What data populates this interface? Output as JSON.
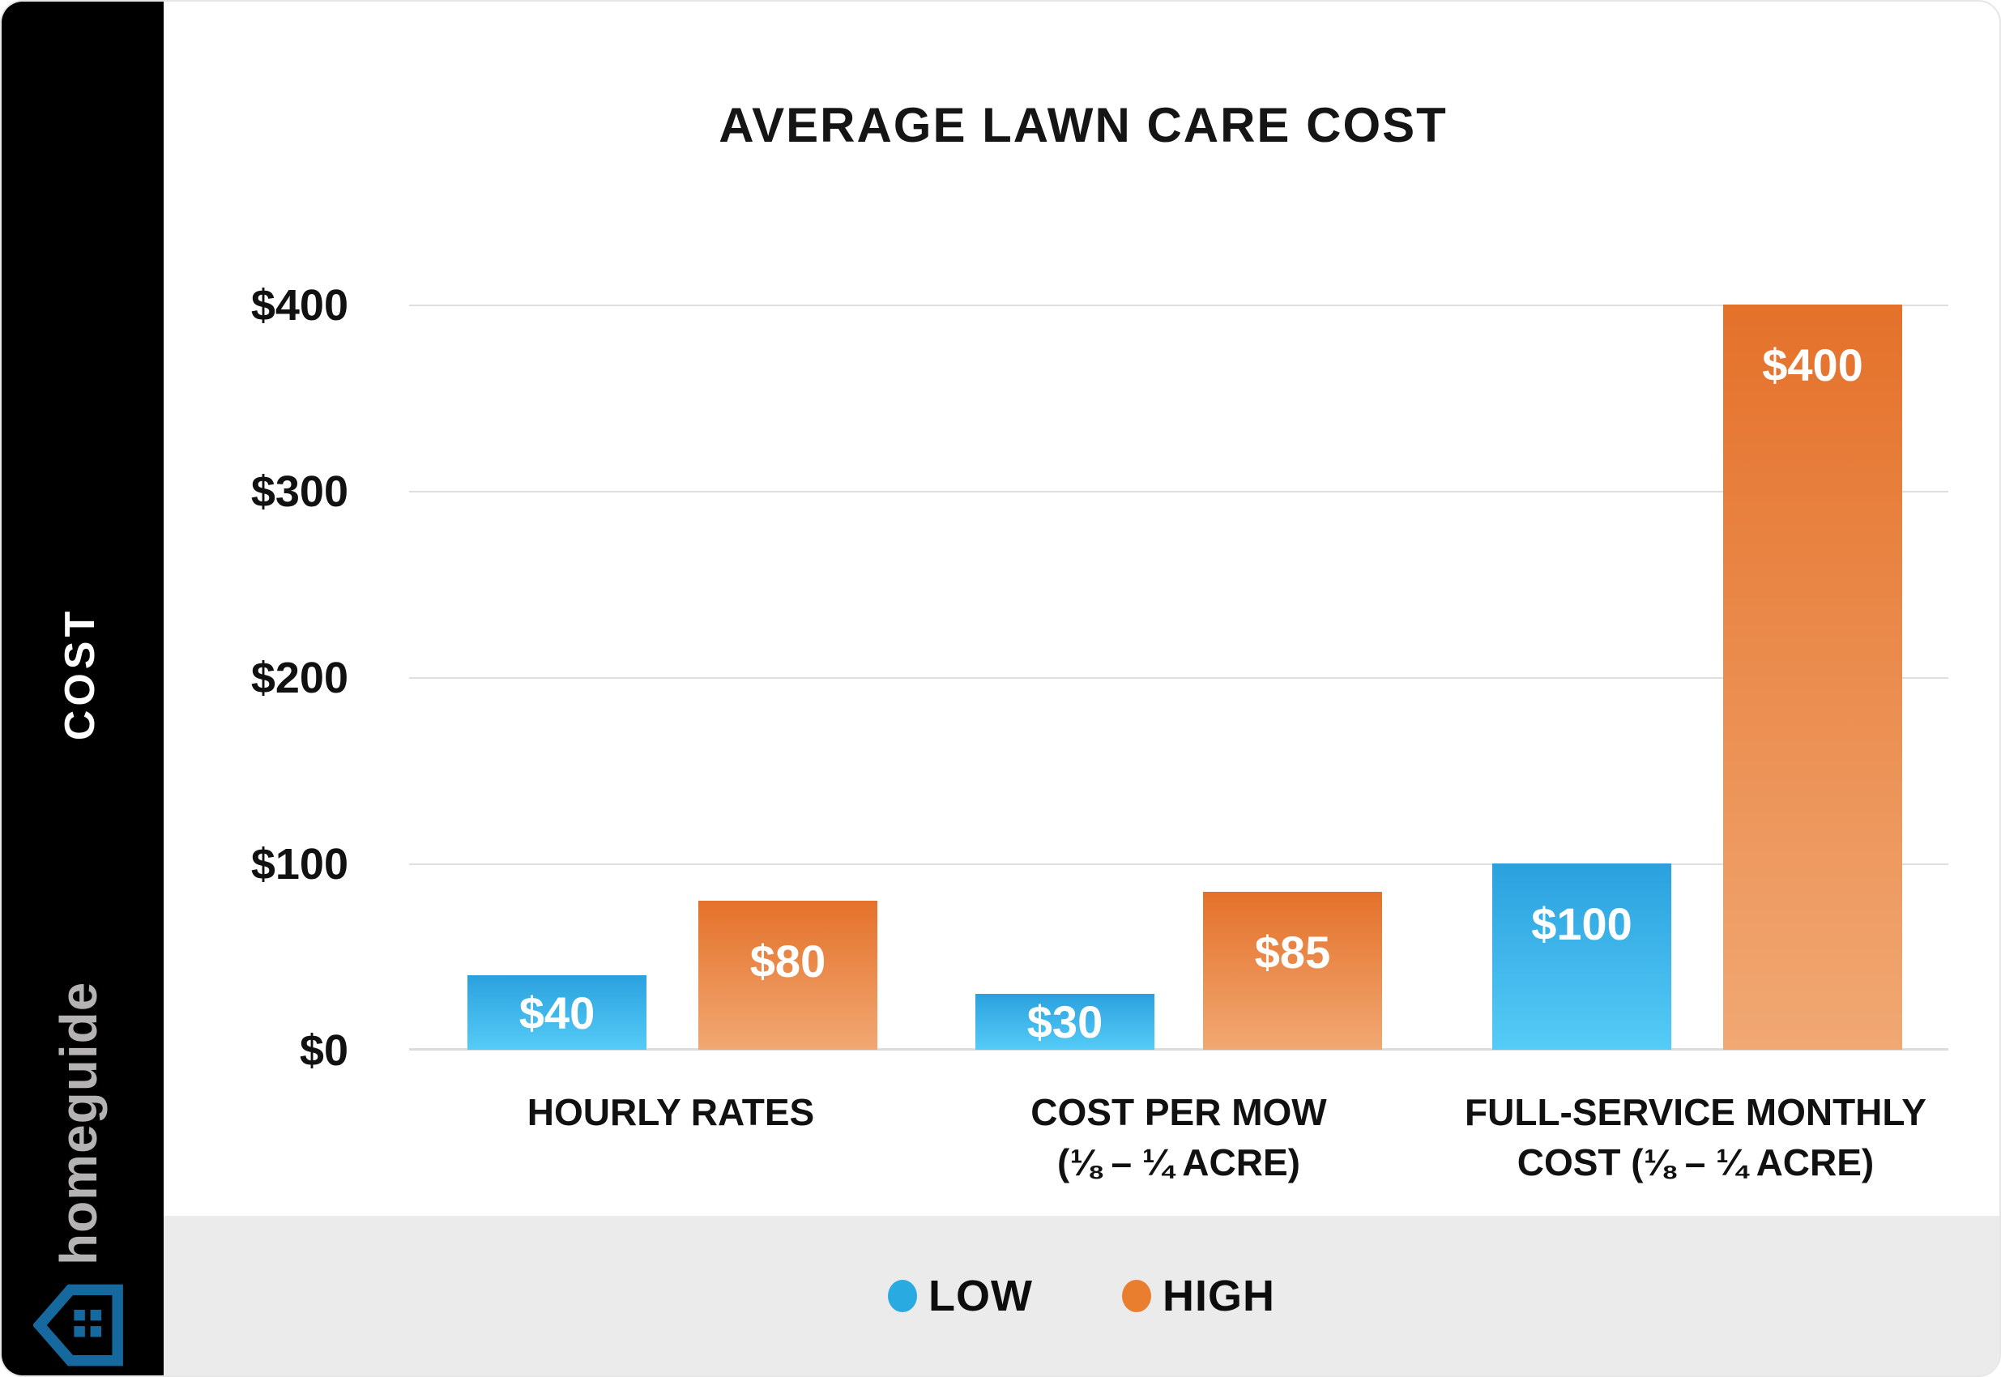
{
  "sidebar": {
    "axis_title": "COST",
    "logo_text": "homeguide",
    "logo_house_color": "#16699e",
    "logo_text_color": "#b4b2b3"
  },
  "chart_data": {
    "type": "bar",
    "title": "AVERAGE LAWN CARE COST",
    "categories": [
      {
        "line1": "HOURLY RATES",
        "line2": ""
      },
      {
        "line1": "COST PER MOW",
        "line2": "(⅛ – ¼ ACRE)"
      },
      {
        "line1": "FULL-SERVICE MONTHLY",
        "line2": "COST (⅛ – ¼ ACRE)"
      }
    ],
    "series": [
      {
        "name": "LOW",
        "color": "#29abe2",
        "values": [
          40,
          30,
          100
        ],
        "labels": [
          "$40",
          "$30",
          "$100"
        ]
      },
      {
        "name": "HIGH",
        "color": "#e87e2e",
        "values": [
          80,
          85,
          400
        ],
        "labels": [
          "$80",
          "$85",
          "$400"
        ]
      }
    ],
    "ylabel": "COST",
    "yticks": [
      "$400",
      "$300",
      "$200",
      "$100",
      "$0"
    ],
    "ylim": [
      0,
      400
    ],
    "grid": true,
    "legend_position": "bottom",
    "bar_gradients": {
      "low_top": "#2aa1de",
      "low_bottom": "#55cbf7",
      "high_top": "#e4712a",
      "high_bottom": "#f1a873"
    }
  },
  "legend": {
    "items": [
      {
        "label": "LOW",
        "color": "#29abe2"
      },
      {
        "label": "HIGH",
        "color": "#e87e2e"
      }
    ]
  }
}
